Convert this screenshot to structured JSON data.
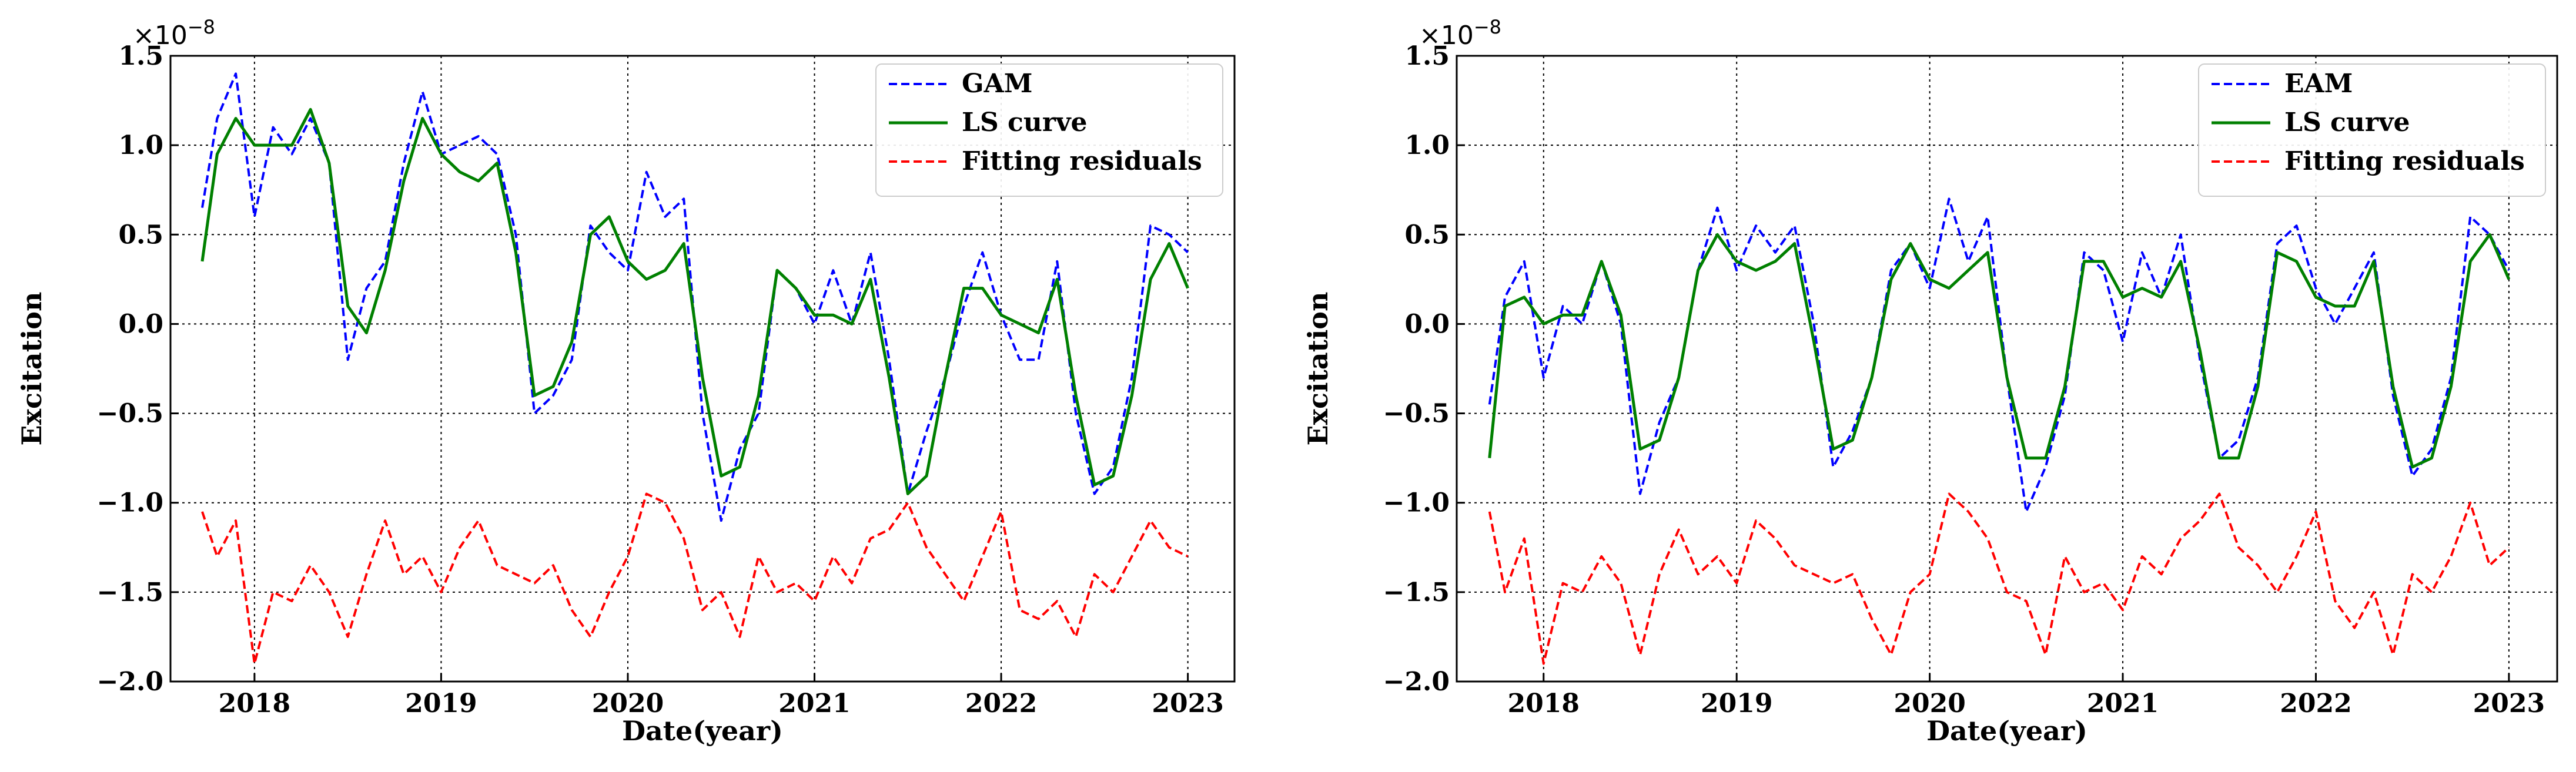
{
  "chart_data": [
    {
      "type": "line",
      "offset_label": "×10",
      "offset_exponent": "−8",
      "xlabel": "Date(year)",
      "ylabel": "Excitation",
      "xlim": [
        2017.55,
        2023.25
      ],
      "ylim": [
        -2.0,
        1.5
      ],
      "xticks": [
        2018,
        2019,
        2020,
        2021,
        2022,
        2023
      ],
      "yticks": [
        -2.0,
        -1.5,
        -1.0,
        -0.5,
        0.0,
        0.5,
        1.0,
        1.5
      ],
      "ytick_labels": [
        "−2.0",
        "−1.5",
        "−1.0",
        "−0.5",
        "0.0",
        "0.5",
        "1.0",
        "1.5"
      ],
      "xtick_labels": [
        "2018",
        "2019",
        "2020",
        "2021",
        "2022",
        "2023"
      ],
      "grid": true,
      "legend_position": "top-right",
      "series": [
        {
          "name": "GAM",
          "color": "#0000ff",
          "style": "dashed",
          "x": [
            2017.72,
            2017.8,
            2017.9,
            2018.0,
            2018.1,
            2018.2,
            2018.3,
            2018.4,
            2018.5,
            2018.6,
            2018.7,
            2018.8,
            2018.9,
            2019.0,
            2019.1,
            2019.2,
            2019.3,
            2019.4,
            2019.5,
            2019.6,
            2019.7,
            2019.8,
            2019.9,
            2020.0,
            2020.1,
            2020.2,
            2020.3,
            2020.4,
            2020.5,
            2020.6,
            2020.7,
            2020.8,
            2020.9,
            2021.0,
            2021.1,
            2021.2,
            2021.3,
            2021.4,
            2021.5,
            2021.6,
            2021.7,
            2021.8,
            2021.9,
            2022.0,
            2022.1,
            2022.2,
            2022.3,
            2022.4,
            2022.5,
            2022.6,
            2022.7,
            2022.8,
            2022.9,
            2023.0
          ],
          "y": [
            0.65,
            1.15,
            1.4,
            0.6,
            1.1,
            0.95,
            1.15,
            0.9,
            -0.2,
            0.2,
            0.35,
            0.9,
            1.3,
            0.95,
            1.0,
            1.05,
            0.95,
            0.5,
            -0.5,
            -0.4,
            -0.2,
            0.55,
            0.4,
            0.3,
            0.85,
            0.6,
            0.7,
            -0.5,
            -1.1,
            -0.7,
            -0.5,
            0.3,
            0.2,
            0.0,
            0.3,
            0.0,
            0.4,
            -0.2,
            -0.95,
            -0.6,
            -0.3,
            0.1,
            0.4,
            0.05,
            -0.2,
            -0.2,
            0.35,
            -0.5,
            -0.95,
            -0.8,
            -0.3,
            0.55,
            0.5,
            0.4
          ]
        },
        {
          "name": "LS curve",
          "color": "#008000",
          "style": "solid",
          "x": [
            2017.72,
            2017.8,
            2017.9,
            2018.0,
            2018.1,
            2018.2,
            2018.3,
            2018.4,
            2018.5,
            2018.6,
            2018.7,
            2018.8,
            2018.9,
            2019.0,
            2019.1,
            2019.2,
            2019.3,
            2019.4,
            2019.5,
            2019.6,
            2019.7,
            2019.8,
            2019.9,
            2020.0,
            2020.1,
            2020.2,
            2020.3,
            2020.4,
            2020.5,
            2020.6,
            2020.7,
            2020.8,
            2020.9,
            2021.0,
            2021.1,
            2021.2,
            2021.3,
            2021.4,
            2021.5,
            2021.6,
            2021.7,
            2021.8,
            2021.9,
            2022.0,
            2022.1,
            2022.2,
            2022.3,
            2022.4,
            2022.5,
            2022.6,
            2022.7,
            2022.8,
            2022.9,
            2023.0
          ],
          "y": [
            0.35,
            0.95,
            1.15,
            1.0,
            1.0,
            1.0,
            1.2,
            0.9,
            0.1,
            -0.05,
            0.3,
            0.8,
            1.15,
            0.95,
            0.85,
            0.8,
            0.9,
            0.4,
            -0.4,
            -0.35,
            -0.1,
            0.5,
            0.6,
            0.35,
            0.25,
            0.3,
            0.45,
            -0.3,
            -0.85,
            -0.8,
            -0.4,
            0.3,
            0.2,
            0.05,
            0.05,
            0.0,
            0.25,
            -0.3,
            -0.95,
            -0.85,
            -0.3,
            0.2,
            0.2,
            0.05,
            0.0,
            -0.05,
            0.25,
            -0.4,
            -0.9,
            -0.85,
            -0.4,
            0.25,
            0.45,
            0.2
          ]
        },
        {
          "name": "Fitting residuals",
          "color": "#ff0000",
          "style": "dashed",
          "x": [
            2017.72,
            2017.8,
            2017.9,
            2018.0,
            2018.1,
            2018.2,
            2018.3,
            2018.4,
            2018.5,
            2018.6,
            2018.7,
            2018.8,
            2018.9,
            2019.0,
            2019.1,
            2019.2,
            2019.3,
            2019.4,
            2019.5,
            2019.6,
            2019.7,
            2019.8,
            2019.9,
            2020.0,
            2020.1,
            2020.2,
            2020.3,
            2020.4,
            2020.5,
            2020.6,
            2020.7,
            2020.8,
            2020.9,
            2021.0,
            2021.1,
            2021.2,
            2021.3,
            2021.4,
            2021.5,
            2021.6,
            2021.7,
            2021.8,
            2021.9,
            2022.0,
            2022.1,
            2022.2,
            2022.3,
            2022.4,
            2022.5,
            2022.6,
            2022.7,
            2022.8,
            2022.9,
            2023.0
          ],
          "y": [
            -1.05,
            -1.3,
            -1.1,
            -1.9,
            -1.5,
            -1.55,
            -1.35,
            -1.5,
            -1.75,
            -1.4,
            -1.1,
            -1.4,
            -1.3,
            -1.5,
            -1.25,
            -1.1,
            -1.35,
            -1.4,
            -1.45,
            -1.35,
            -1.6,
            -1.75,
            -1.5,
            -1.3,
            -0.95,
            -1.0,
            -1.2,
            -1.6,
            -1.5,
            -1.75,
            -1.3,
            -1.5,
            -1.45,
            -1.55,
            -1.3,
            -1.45,
            -1.2,
            -1.15,
            -1.0,
            -1.25,
            -1.4,
            -1.55,
            -1.3,
            -1.05,
            -1.6,
            -1.65,
            -1.55,
            -1.75,
            -1.4,
            -1.5,
            -1.3,
            -1.1,
            -1.25,
            -1.3
          ]
        }
      ]
    },
    {
      "type": "line",
      "offset_label": "×10",
      "offset_exponent": "−8",
      "xlabel": "Date(year)",
      "ylabel": "Excitation",
      "xlim": [
        2017.55,
        2023.25
      ],
      "ylim": [
        -2.0,
        1.5
      ],
      "xticks": [
        2018,
        2019,
        2020,
        2021,
        2022,
        2023
      ],
      "yticks": [
        -2.0,
        -1.5,
        -1.0,
        -0.5,
        0.0,
        0.5,
        1.0,
        1.5
      ],
      "ytick_labels": [
        "−2.0",
        "−1.5",
        "−1.0",
        "−0.5",
        "0.0",
        "0.5",
        "1.0",
        "1.5"
      ],
      "xtick_labels": [
        "2018",
        "2019",
        "2020",
        "2021",
        "2022",
        "2023"
      ],
      "grid": true,
      "legend_position": "top-right",
      "series": [
        {
          "name": "EAM",
          "color": "#0000ff",
          "style": "dashed",
          "x": [
            2017.72,
            2017.8,
            2017.9,
            2018.0,
            2018.1,
            2018.2,
            2018.3,
            2018.4,
            2018.5,
            2018.6,
            2018.7,
            2018.8,
            2018.9,
            2019.0,
            2019.1,
            2019.2,
            2019.3,
            2019.4,
            2019.5,
            2019.6,
            2019.7,
            2019.8,
            2019.9,
            2020.0,
            2020.1,
            2020.2,
            2020.3,
            2020.4,
            2020.5,
            2020.6,
            2020.7,
            2020.8,
            2020.9,
            2021.0,
            2021.1,
            2021.2,
            2021.3,
            2021.4,
            2021.5,
            2021.6,
            2021.7,
            2021.8,
            2021.9,
            2022.0,
            2022.1,
            2022.2,
            2022.3,
            2022.4,
            2022.5,
            2022.6,
            2022.7,
            2022.8,
            2022.9,
            2023.0
          ],
          "y": [
            -0.45,
            0.15,
            0.35,
            -0.3,
            0.1,
            0.0,
            0.35,
            0.0,
            -0.95,
            -0.55,
            -0.3,
            0.3,
            0.65,
            0.3,
            0.55,
            0.4,
            0.55,
            0.0,
            -0.8,
            -0.6,
            -0.3,
            0.3,
            0.45,
            0.2,
            0.7,
            0.35,
            0.6,
            -0.3,
            -1.05,
            -0.8,
            -0.4,
            0.4,
            0.3,
            -0.1,
            0.4,
            0.15,
            0.5,
            -0.2,
            -0.75,
            -0.65,
            -0.3,
            0.45,
            0.55,
            0.2,
            0.0,
            0.2,
            0.4,
            -0.4,
            -0.85,
            -0.7,
            -0.3,
            0.6,
            0.5,
            0.3
          ]
        },
        {
          "name": "LS curve",
          "color": "#008000",
          "style": "solid",
          "x": [
            2017.72,
            2017.8,
            2017.9,
            2018.0,
            2018.1,
            2018.2,
            2018.3,
            2018.4,
            2018.5,
            2018.6,
            2018.7,
            2018.8,
            2018.9,
            2019.0,
            2019.1,
            2019.2,
            2019.3,
            2019.4,
            2019.5,
            2019.6,
            2019.7,
            2019.8,
            2019.9,
            2020.0,
            2020.1,
            2020.2,
            2020.3,
            2020.4,
            2020.5,
            2020.6,
            2020.7,
            2020.8,
            2020.9,
            2021.0,
            2021.1,
            2021.2,
            2021.3,
            2021.4,
            2021.5,
            2021.6,
            2021.7,
            2021.8,
            2021.9,
            2022.0,
            2022.1,
            2022.2,
            2022.3,
            2022.4,
            2022.5,
            2022.6,
            2022.7,
            2022.8,
            2022.9,
            2023.0
          ],
          "y": [
            -0.75,
            0.1,
            0.15,
            0.0,
            0.05,
            0.05,
            0.35,
            0.05,
            -0.7,
            -0.65,
            -0.3,
            0.3,
            0.5,
            0.35,
            0.3,
            0.35,
            0.45,
            -0.1,
            -0.7,
            -0.65,
            -0.3,
            0.25,
            0.45,
            0.25,
            0.2,
            0.3,
            0.4,
            -0.3,
            -0.75,
            -0.75,
            -0.35,
            0.35,
            0.35,
            0.15,
            0.2,
            0.15,
            0.35,
            -0.15,
            -0.75,
            -0.75,
            -0.35,
            0.4,
            0.35,
            0.15,
            0.1,
            0.1,
            0.35,
            -0.35,
            -0.8,
            -0.75,
            -0.35,
            0.35,
            0.5,
            0.25
          ]
        },
        {
          "name": "Fitting residuals",
          "color": "#ff0000",
          "style": "dashed",
          "x": [
            2017.72,
            2017.8,
            2017.9,
            2018.0,
            2018.1,
            2018.2,
            2018.3,
            2018.4,
            2018.5,
            2018.6,
            2018.7,
            2018.8,
            2018.9,
            2019.0,
            2019.1,
            2019.2,
            2019.3,
            2019.4,
            2019.5,
            2019.6,
            2019.7,
            2019.8,
            2019.9,
            2020.0,
            2020.1,
            2020.2,
            2020.3,
            2020.4,
            2020.5,
            2020.6,
            2020.7,
            2020.8,
            2020.9,
            2021.0,
            2021.1,
            2021.2,
            2021.3,
            2021.4,
            2021.5,
            2021.6,
            2021.7,
            2021.8,
            2021.9,
            2022.0,
            2022.1,
            2022.2,
            2022.3,
            2022.4,
            2022.5,
            2022.6,
            2022.7,
            2022.8,
            2022.9,
            2023.0
          ],
          "y": [
            -1.05,
            -1.5,
            -1.2,
            -1.9,
            -1.45,
            -1.5,
            -1.3,
            -1.45,
            -1.85,
            -1.4,
            -1.15,
            -1.4,
            -1.3,
            -1.45,
            -1.1,
            -1.2,
            -1.35,
            -1.4,
            -1.45,
            -1.4,
            -1.65,
            -1.85,
            -1.5,
            -1.4,
            -0.95,
            -1.05,
            -1.2,
            -1.5,
            -1.55,
            -1.85,
            -1.3,
            -1.5,
            -1.45,
            -1.6,
            -1.3,
            -1.4,
            -1.2,
            -1.1,
            -0.95,
            -1.25,
            -1.35,
            -1.5,
            -1.3,
            -1.05,
            -1.55,
            -1.7,
            -1.5,
            -1.85,
            -1.4,
            -1.5,
            -1.3,
            -1.0,
            -1.35,
            -1.25
          ]
        }
      ]
    }
  ]
}
